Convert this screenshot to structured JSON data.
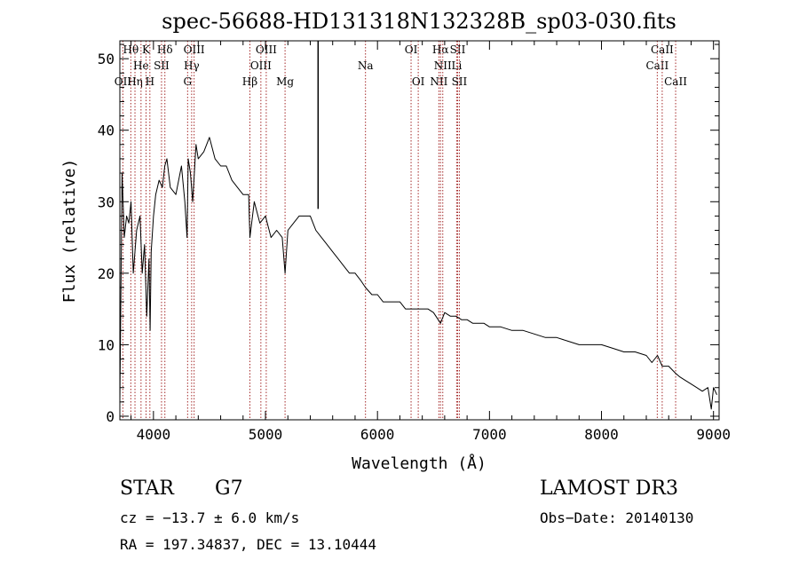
{
  "chart_data": {
    "type": "line",
    "title": "spec-56688-HD131318N132328B_sp03-030.fits",
    "xlabel": "Wavelength (Å)",
    "ylabel": "Flux (relative)",
    "xlim": [
      3700,
      9050
    ],
    "ylim": [
      -0.5,
      52.5
    ],
    "xticks": [
      4000,
      5000,
      6000,
      7000,
      8000,
      9000
    ],
    "yticks": [
      0,
      10,
      20,
      30,
      40,
      50
    ],
    "grid": false,
    "series": [
      {
        "name": "flux",
        "color": "#000000",
        "x": [
          3700,
          3720,
          3740,
          3760,
          3780,
          3800,
          3820,
          3850,
          3880,
          3900,
          3920,
          3940,
          3960,
          3970,
          3980,
          4000,
          4020,
          4050,
          4080,
          4101,
          4120,
          4150,
          4200,
          4250,
          4280,
          4300,
          4310,
          4330,
          4350,
          4380,
          4400,
          4450,
          4500,
          4550,
          4600,
          4650,
          4700,
          4750,
          4800,
          4850,
          4861,
          4900,
          4950,
          5000,
          5050,
          5100,
          5150,
          5175,
          5200,
          5250,
          5300,
          5350,
          5400,
          5450,
          5500,
          5550,
          5600,
          5650,
          5700,
          5750,
          5800,
          5850,
          5893,
          5950,
          6000,
          6050,
          6100,
          6150,
          6200,
          6250,
          6300,
          6350,
          6400,
          6450,
          6500,
          6563,
          6600,
          6650,
          6700,
          6750,
          6800,
          6850,
          6900,
          6950,
          7000,
          7100,
          7200,
          7300,
          7400,
          7500,
          7600,
          7700,
          7800,
          7900,
          8000,
          8100,
          8200,
          8300,
          8400,
          8450,
          8500,
          8542,
          8600,
          8662,
          8700,
          8750,
          8800,
          8850,
          8900,
          8950,
          8980,
          9000,
          9030
        ],
        "y": [
          2,
          34,
          25,
          28,
          27,
          30,
          20,
          26,
          28,
          20,
          24,
          14,
          22,
          12,
          23,
          28,
          31,
          33,
          32,
          35,
          36,
          32,
          31,
          35,
          30,
          25,
          36,
          34,
          30,
          38,
          36,
          37,
          39,
          36,
          35,
          35,
          33,
          32,
          31,
          31,
          25,
          30,
          27,
          28,
          25,
          26,
          25,
          20,
          26,
          27,
          28,
          28,
          28,
          26,
          25,
          24,
          23,
          22,
          21,
          20,
          20,
          19,
          18,
          17,
          17,
          16,
          16,
          16,
          16,
          15,
          15,
          15,
          15,
          15,
          14.5,
          13,
          14.5,
          14,
          14,
          13.5,
          13.5,
          13,
          13,
          13,
          12.5,
          12.5,
          12,
          12,
          11.5,
          11,
          11,
          10.5,
          10,
          10,
          10,
          9.5,
          9,
          9,
          8.5,
          7.5,
          8.5,
          7,
          7,
          6,
          5.5,
          5,
          4.5,
          4,
          3.5,
          4,
          1,
          4,
          3
        ]
      }
    ],
    "spike": {
      "x": 5470,
      "from": 29,
      "to": 52.5
    },
    "lines": [
      {
        "x": 3727,
        "row": 2,
        "label": "OII"
      },
      {
        "x": 3798,
        "row": 0,
        "label": "Hθ"
      },
      {
        "x": 3835,
        "row": 2,
        "label": "Hη"
      },
      {
        "x": 3889,
        "row": 1,
        "label": "He"
      },
      {
        "x": 3934,
        "row": 0,
        "label": "K"
      },
      {
        "x": 3968,
        "row": 2,
        "label": "H"
      },
      {
        "x": 4072,
        "row": 1,
        "label": "SII"
      },
      {
        "x": 4102,
        "row": 0,
        "label": "Hδ"
      },
      {
        "x": 4305,
        "row": 2,
        "label": "G"
      },
      {
        "x": 4341,
        "row": 1,
        "label": "Hγ"
      },
      {
        "x": 4363,
        "row": 0,
        "label": "OIII"
      },
      {
        "x": 4861,
        "row": 2,
        "label": "Hβ"
      },
      {
        "x": 4959,
        "row": 1,
        "label": "OIII"
      },
      {
        "x": 5007,
        "row": 0,
        "label": "OIII"
      },
      {
        "x": 5175,
        "row": 2,
        "label": "Mg"
      },
      {
        "x": 5893,
        "row": 1,
        "label": "Na"
      },
      {
        "x": 6300,
        "row": 0,
        "label": "OI"
      },
      {
        "x": 6364,
        "row": 2,
        "label": "OI"
      },
      {
        "x": 6548,
        "row": 2,
        "label": "NII"
      },
      {
        "x": 6563,
        "row": 0,
        "label": "Hα"
      },
      {
        "x": 6583,
        "row": 1,
        "label": "NII"
      },
      {
        "x": 6707,
        "row": 1,
        "label": "Li"
      },
      {
        "x": 6716,
        "row": 0,
        "label": "SII"
      },
      {
        "x": 6731,
        "row": 2,
        "label": "SII"
      },
      {
        "x": 8498,
        "row": 1,
        "label": "CaII"
      },
      {
        "x": 8542,
        "row": 0,
        "label": "CaII"
      },
      {
        "x": 8662,
        "row": 2,
        "label": "CaII"
      }
    ]
  },
  "info": {
    "object_class": "STAR",
    "subclass": "G7",
    "survey": "LAMOST DR3",
    "cz": "cz = −13.7 ± 6.0 km/s",
    "obs_date": "Obs−Date: 20140130",
    "coords": "RA = 197.34837, DEC =  13.10444"
  }
}
